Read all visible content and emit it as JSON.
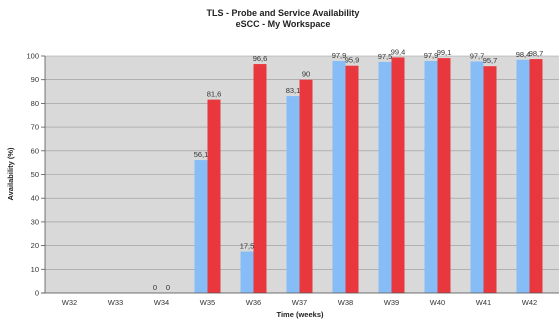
{
  "chart_data": {
    "type": "bar",
    "title": "TLS - Probe and Service Availability",
    "subtitle": "eSCC - My Workspace",
    "xlabel": "Time (weeks)",
    "ylabel": "Availability (%)",
    "ylim": [
      0,
      100
    ],
    "yticks": [
      "0",
      "10",
      "20",
      "30",
      "40",
      "50",
      "60",
      "70",
      "80",
      "90",
      "100"
    ],
    "grid": true,
    "categories": [
      "W32",
      "W33",
      "W34",
      "W35",
      "W36",
      "W37",
      "W38",
      "W39",
      "W40",
      "W41",
      "W42"
    ],
    "series": [
      {
        "color": "#87bdf7",
        "values": [
          null,
          null,
          0,
          56.1,
          17.5,
          83.1,
          97.9,
          97.5,
          97.9,
          97.7,
          98.4
        ],
        "labels": [
          "",
          "",
          "0",
          "56,1",
          "17,5",
          "83,1",
          "97,9",
          "97,5",
          "97,9",
          "97,7",
          "98,4"
        ]
      },
      {
        "color": "#e8383e",
        "values": [
          null,
          null,
          0,
          81.6,
          96.6,
          90,
          95.9,
          99.4,
          99.1,
          95.7,
          98.7
        ],
        "labels": [
          "",
          "",
          "0",
          "81,6",
          "96,6",
          "90",
          "95,9",
          "99,4",
          "99,1",
          "95,7",
          "98,7"
        ]
      }
    ],
    "plot_bg": "#d9d9d9"
  }
}
